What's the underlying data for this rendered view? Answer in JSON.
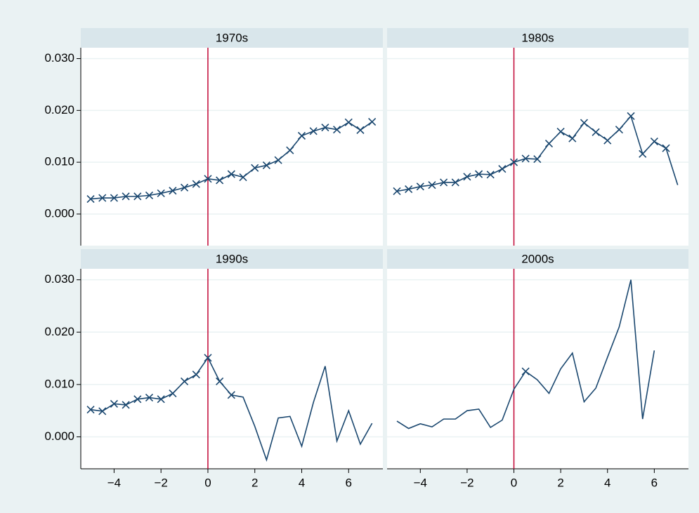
{
  "chart_data": {
    "type": "line",
    "x": [
      -5,
      -4.5,
      -4,
      -3.5,
      -3,
      -2.5,
      -2,
      -1.5,
      -1,
      -0.5,
      0,
      0.5,
      1,
      1.5,
      2,
      2.5,
      3,
      3.5,
      4,
      4.5,
      5,
      5.5,
      6,
      6.5,
      7
    ],
    "xlim": [
      -5.42,
      7.46
    ],
    "xticks": [
      {
        "value": -4,
        "label": "−4"
      },
      {
        "value": -2,
        "label": "−2"
      },
      0,
      2,
      4,
      6
    ],
    "ylim": [
      -0.0061,
      0.0321
    ],
    "yticks": [
      {
        "value": 0,
        "label": "0.000"
      },
      {
        "value": 0.01,
        "label": "0.010"
      },
      {
        "value": 0.02,
        "label": "0.020"
      },
      {
        "value": 0.03,
        "label": "0.030"
      }
    ],
    "grid": true,
    "color": "#1a476f",
    "reference_line": {
      "value": 0,
      "color": "#c10534"
    },
    "panels": [
      {
        "title": "1970s",
        "values": [
          0.0029,
          0.0031,
          0.0031,
          0.0034,
          0.0034,
          0.0036,
          0.004,
          0.0045,
          0.0051,
          0.0058,
          0.0068,
          0.0065,
          0.0077,
          0.0071,
          0.0089,
          0.0094,
          0.0104,
          0.0123,
          0.0151,
          0.016,
          0.0167,
          0.0163,
          0.0177,
          0.0162,
          0.0178
        ],
        "marked": [
          true,
          true,
          true,
          true,
          true,
          true,
          true,
          true,
          true,
          true,
          true,
          true,
          true,
          true,
          true,
          true,
          true,
          true,
          true,
          true,
          true,
          true,
          true,
          true,
          true
        ]
      },
      {
        "title": "1980s",
        "values": [
          0.0044,
          0.0048,
          0.0053,
          0.0056,
          0.0061,
          0.0061,
          0.0072,
          0.0077,
          0.0076,
          0.0087,
          0.01,
          0.0107,
          0.0106,
          0.0136,
          0.0159,
          0.0146,
          0.0176,
          0.0158,
          0.0142,
          0.0163,
          0.0189,
          0.0116,
          0.014,
          0.0127,
          0.0056
        ],
        "marked": [
          true,
          true,
          true,
          true,
          true,
          true,
          true,
          true,
          true,
          true,
          true,
          true,
          true,
          true,
          true,
          true,
          true,
          true,
          true,
          true,
          true,
          true,
          true,
          true,
          false
        ]
      },
      {
        "title": "1990s",
        "values": [
          0.0052,
          0.0049,
          0.0063,
          0.0061,
          0.0072,
          0.0075,
          0.0072,
          0.0083,
          0.0106,
          0.0119,
          0.0151,
          0.0106,
          0.008,
          0.0076,
          0.002,
          -0.0044,
          0.0036,
          0.0039,
          -0.0018,
          0.0066,
          0.0135,
          -0.0008,
          0.005,
          -0.0014,
          0.0026
        ],
        "marked": [
          true,
          true,
          true,
          true,
          true,
          true,
          true,
          true,
          true,
          true,
          true,
          true,
          true,
          false,
          false,
          false,
          false,
          false,
          false,
          false,
          false,
          false,
          false,
          false,
          false
        ]
      },
      {
        "title": "2000s",
        "values": [
          0.003,
          0.0016,
          0.0025,
          0.0019,
          0.0034,
          0.0034,
          0.005,
          0.0053,
          0.0018,
          0.0032,
          0.0091,
          0.0125,
          0.0109,
          0.0083,
          0.013,
          0.016,
          0.0067,
          0.0093,
          0.0152,
          0.021,
          0.03,
          0.0034,
          0.0165,
          null,
          null
        ],
        "marked": [
          false,
          false,
          false,
          false,
          false,
          false,
          false,
          false,
          false,
          false,
          false,
          true,
          false,
          false,
          false,
          false,
          false,
          false,
          false,
          false,
          false,
          false,
          false,
          false,
          false
        ]
      }
    ]
  }
}
